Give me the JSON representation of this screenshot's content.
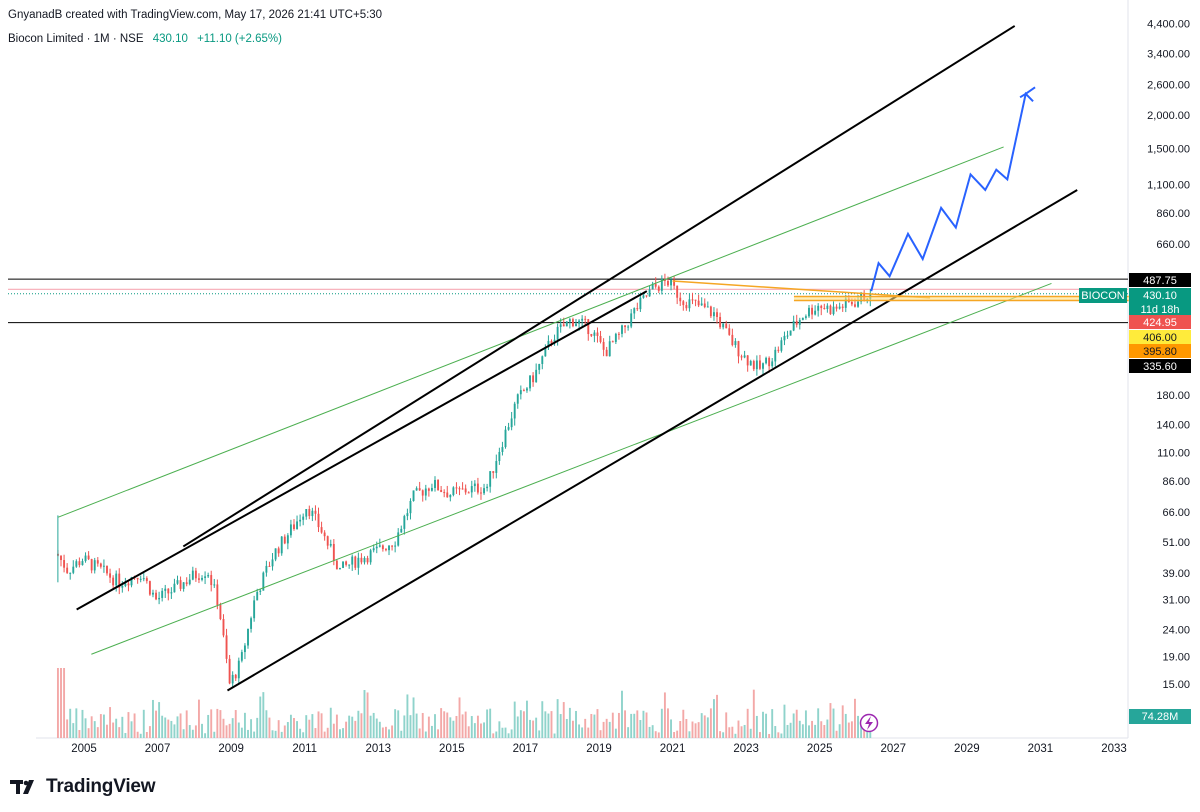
{
  "header": {
    "credit": "GnyanadB created with TradingView.com, May 17, 2026 21:41 UTC+5:30",
    "symbol_line": "Biocon Limited · 1M · NSE",
    "last_price": "430.10",
    "change": "+11.10 (+2.65%)"
  },
  "footer": {
    "brand": "TradingView"
  },
  "colors": {
    "up": "#26a69a",
    "down": "#ef5350",
    "channel": "#000000",
    "green_channel": "#4caf50",
    "projection": "#2962ff",
    "orange": "#f5a623",
    "pink_level": "#f7a9b4"
  },
  "chart_data": {
    "type": "candlestick",
    "timeframe": "1M",
    "exchange": "NSE",
    "scale": "log",
    "x_axis": {
      "ticks": [
        "2005",
        "2007",
        "2009",
        "2011",
        "2013",
        "2015",
        "2017",
        "2019",
        "2021",
        "2023",
        "2025",
        "2027",
        "2029",
        "2031",
        "2033"
      ],
      "range": [
        2004.2,
        2034.0
      ]
    },
    "y_axis": {
      "ticks": [
        "4,400.00",
        "3,400.00",
        "2,600.00",
        "2,000.00",
        "1,500.00",
        "1,100.00",
        "860.00",
        "660.00",
        "180.00",
        "140.00",
        "110.00",
        "86.00",
        "66.00",
        "51.00",
        "39.00",
        "31.00",
        "24.00",
        "19.00",
        "15.00"
      ],
      "range": [
        9.5,
        4600
      ]
    },
    "price_tags": [
      {
        "label": "487.75",
        "value": 487.75,
        "bg": "#000000",
        "fg": "#ffffff"
      },
      {
        "label": "430.10",
        "value": 430.1,
        "bg": "#089981",
        "fg": "#ffffff",
        "symbol": "BIOCON",
        "countdown": "11d 18h"
      },
      {
        "label": "424.95",
        "value": 424.95,
        "bg": "#ef5350",
        "fg": "#ffffff"
      },
      {
        "label": "406.00",
        "value": 406.0,
        "bg": "#ffeb3b",
        "fg": "#131722"
      },
      {
        "label": "395.80",
        "value": 395.8,
        "bg": "#ff9800",
        "fg": "#131722"
      },
      {
        "label": "335.60",
        "value": 335.6,
        "bg": "#000000",
        "fg": "#ffffff"
      }
    ],
    "volume_label": "74.28M",
    "horizontal_levels": [
      {
        "value": 487.75,
        "color": "#000000"
      },
      {
        "value": 447,
        "color": "#f7a9b4"
      },
      {
        "value": 335.6,
        "color": "#000000"
      }
    ],
    "price_keypoints": [
      [
        2004.3,
        46
      ],
      [
        2004.6,
        40
      ],
      [
        2005.0,
        44
      ],
      [
        2005.5,
        40
      ],
      [
        2006.0,
        36
      ],
      [
        2006.6,
        39
      ],
      [
        2007.0,
        31
      ],
      [
        2007.5,
        34
      ],
      [
        2008.0,
        38
      ],
      [
        2008.4,
        40
      ],
      [
        2008.7,
        30
      ],
      [
        2009.0,
        15
      ],
      [
        2009.3,
        18
      ],
      [
        2009.7,
        32
      ],
      [
        2010.2,
        46
      ],
      [
        2010.8,
        60
      ],
      [
        2011.1,
        70
      ],
      [
        2011.5,
        56
      ],
      [
        2012.0,
        40
      ],
      [
        2012.5,
        44
      ],
      [
        2013.0,
        47
      ],
      [
        2013.5,
        52
      ],
      [
        2014.0,
        75
      ],
      [
        2014.5,
        84
      ],
      [
        2015.0,
        77
      ],
      [
        2015.5,
        80
      ],
      [
        2016.0,
        82
      ],
      [
        2016.3,
        110
      ],
      [
        2016.8,
        170
      ],
      [
        2017.3,
        215
      ],
      [
        2017.8,
        300
      ],
      [
        2018.3,
        345
      ],
      [
        2018.8,
        320
      ],
      [
        2019.2,
        260
      ],
      [
        2019.6,
        300
      ],
      [
        2020.0,
        370
      ],
      [
        2020.5,
        450
      ],
      [
        2020.9,
        480
      ],
      [
        2021.3,
        410
      ],
      [
        2021.8,
        385
      ],
      [
        2022.2,
        360
      ],
      [
        2022.6,
        290
      ],
      [
        2023.0,
        250
      ],
      [
        2023.4,
        225
      ],
      [
        2023.8,
        255
      ],
      [
        2024.2,
        310
      ],
      [
        2024.6,
        360
      ],
      [
        2025.0,
        390
      ],
      [
        2025.4,
        375
      ],
      [
        2025.8,
        395
      ],
      [
        2026.1,
        405
      ],
      [
        2026.35,
        430.1
      ]
    ],
    "annotations": {
      "black_channel_upper": [
        [
          2007.7,
          49
        ],
        [
          2030.3,
          4300
        ]
      ],
      "black_channel_mid": [
        [
          2004.8,
          28.5
        ],
        [
          2020.3,
          440
        ]
      ],
      "black_channel_lower": [
        [
          2008.9,
          14.2
        ],
        [
          2032.0,
          1050
        ]
      ],
      "green_channel_upper": [
        [
          2004.3,
          63
        ],
        [
          2030.0,
          1520
        ]
      ],
      "green_channel_lower": [
        [
          2005.2,
          19.4
        ],
        [
          2031.3,
          470
        ]
      ],
      "orange_trendline": [
        [
          2021.0,
          480
        ],
        [
          2028.0,
          415
        ]
      ],
      "orange_band": [
        [
          2024.3,
          420
        ],
        [
          2033.4,
          406
        ]
      ],
      "blue_projection": [
        [
          2026.4,
          440
        ],
        [
          2026.6,
          560
        ],
        [
          2026.9,
          500
        ],
        [
          2027.4,
          720
        ],
        [
          2027.8,
          580
        ],
        [
          2028.3,
          900
        ],
        [
          2028.7,
          760
        ],
        [
          2029.1,
          1200
        ],
        [
          2029.5,
          1050
        ],
        [
          2029.8,
          1250
        ],
        [
          2030.1,
          1150
        ],
        [
          2030.6,
          2400
        ],
        [
          2030.8,
          2250
        ]
      ]
    }
  }
}
